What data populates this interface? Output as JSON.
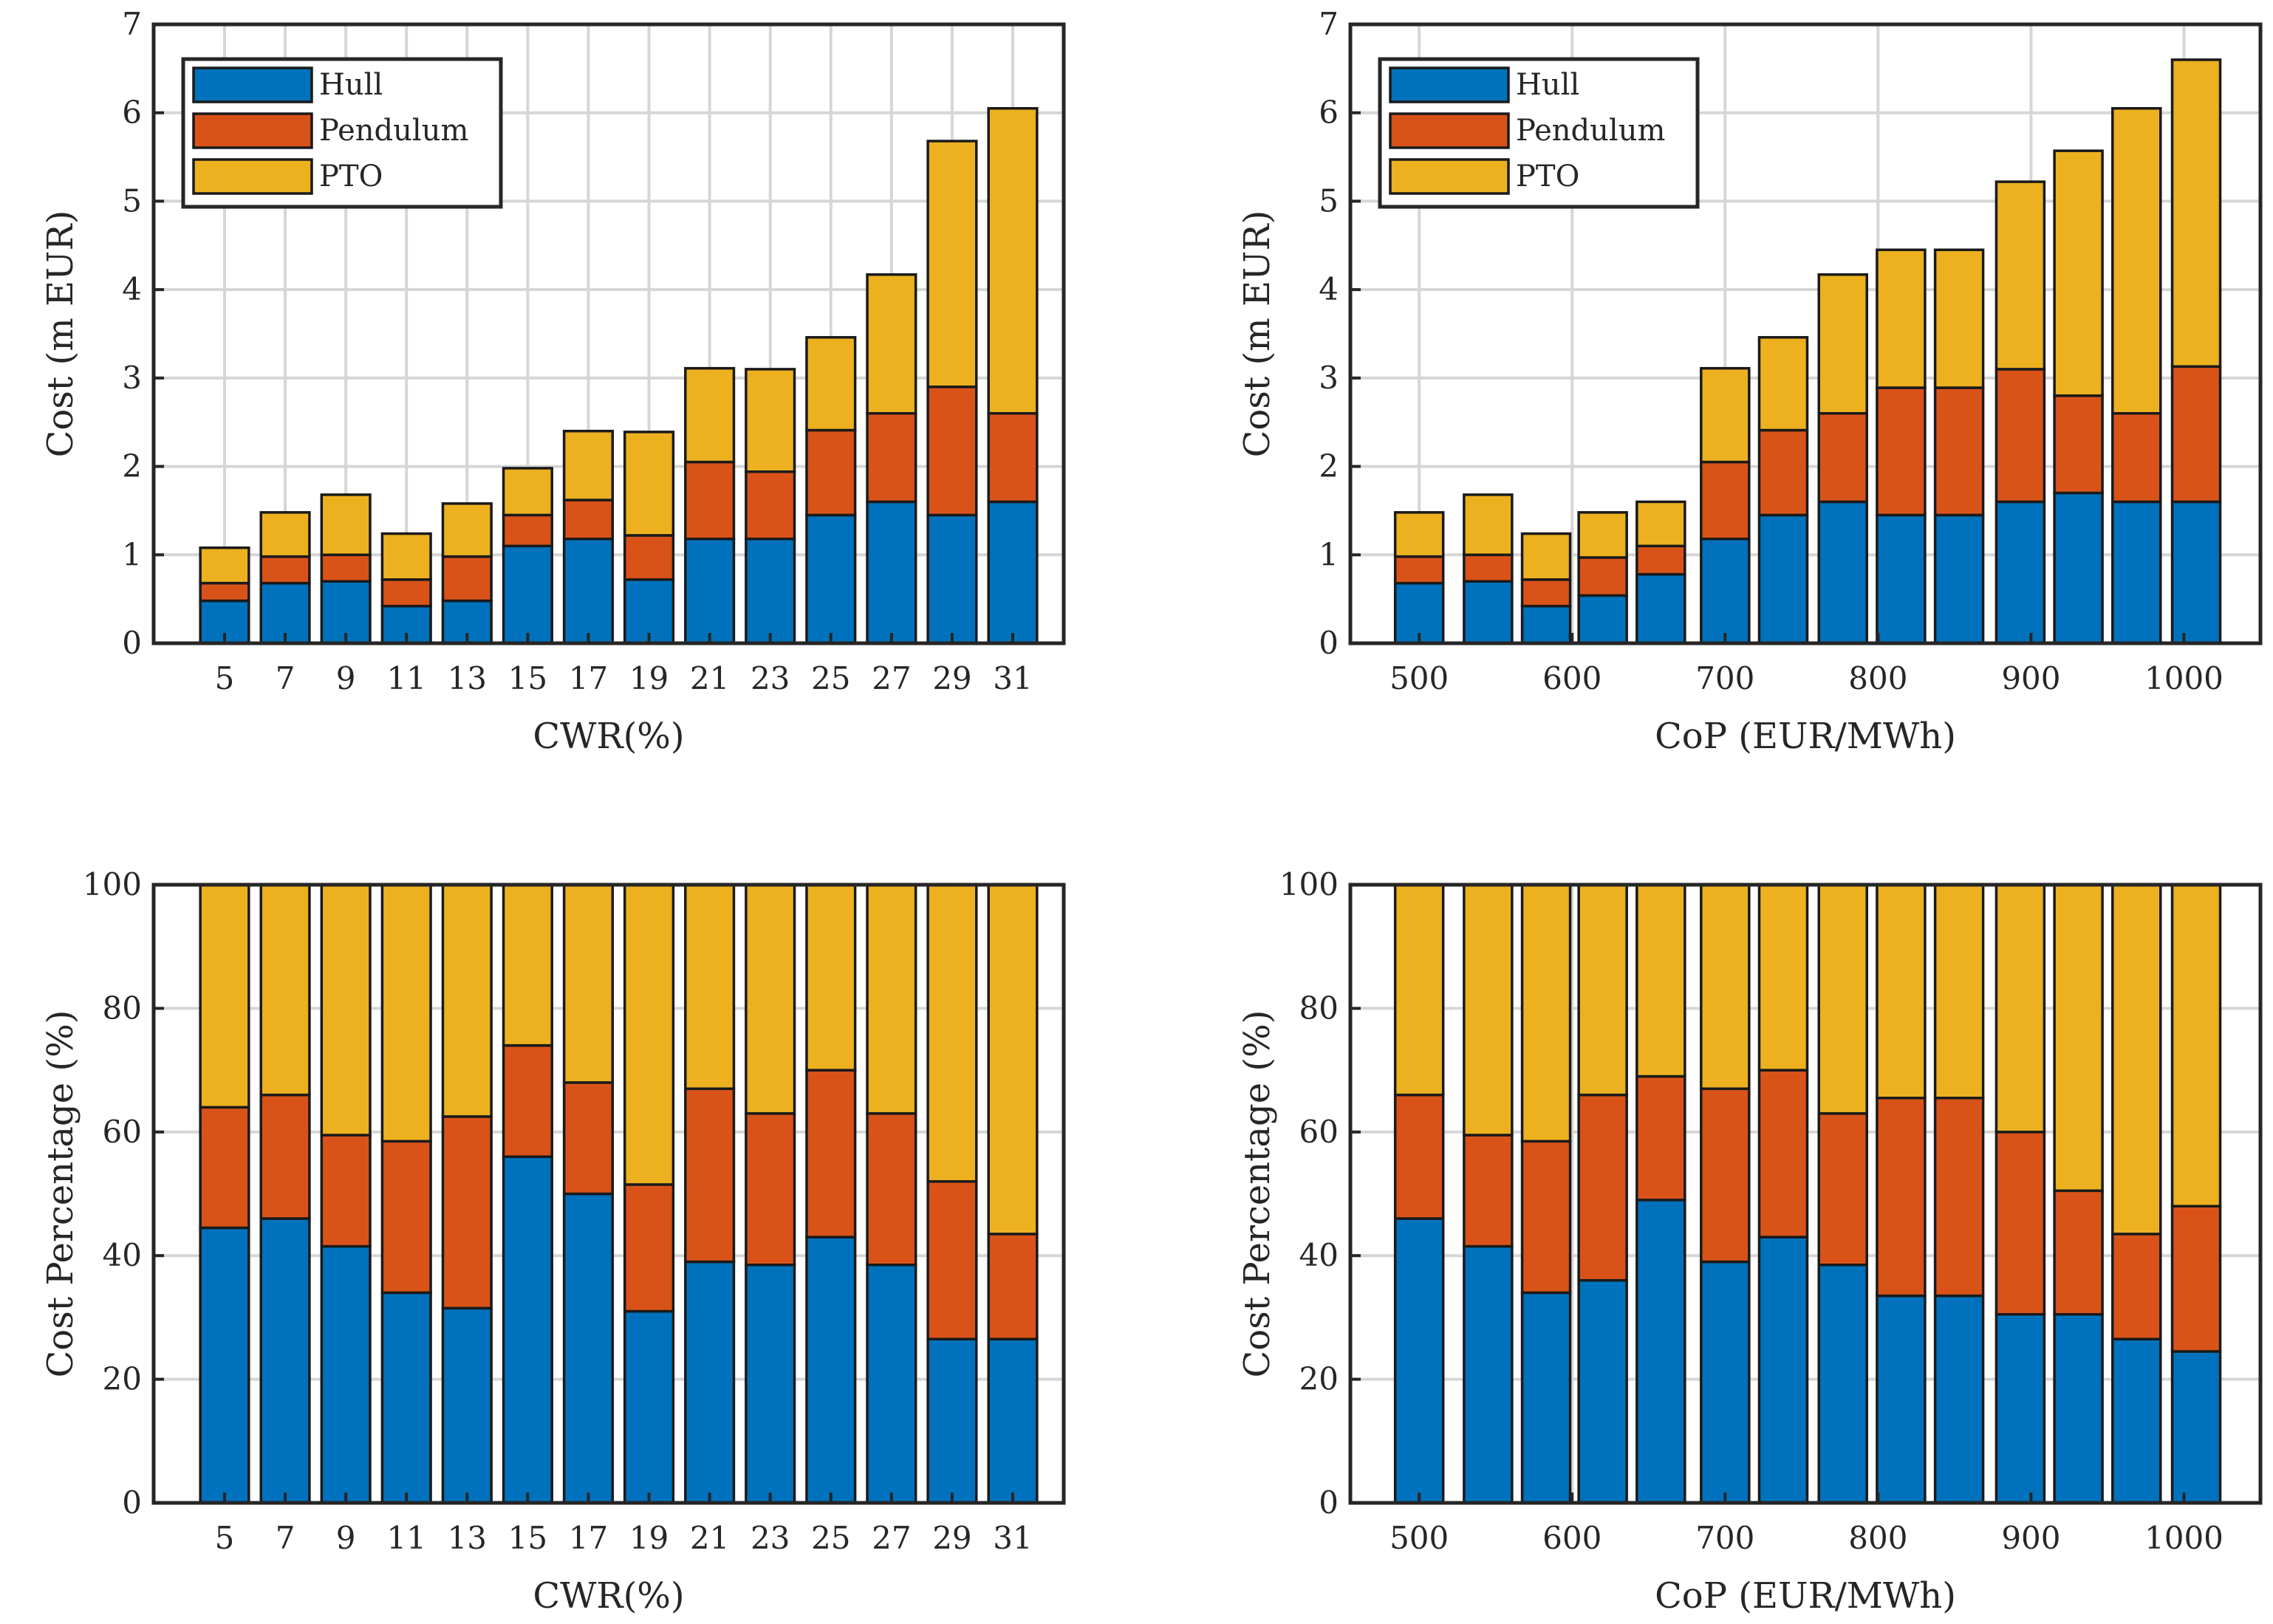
{
  "colors": {
    "Hull": "#0072BD",
    "Pendulum": "#D95319",
    "PTO": "#EDB120"
  },
  "legend": [
    "Hull",
    "Pendulum",
    "PTO"
  ],
  "chart_data": [
    {
      "id": "cwr-cost",
      "type": "bar",
      "stacked": true,
      "xlabel": "CWR(%)",
      "ylabel": "Cost (m EUR)",
      "ylim": [
        0,
        7
      ],
      "yticks": [
        "0",
        "1",
        "2",
        "3",
        "4",
        "5",
        "6",
        "7"
      ],
      "categories": [
        "5",
        "7",
        "9",
        "11",
        "13",
        "15",
        "17",
        "19",
        "21",
        "23",
        "25",
        "27",
        "29",
        "31"
      ],
      "xtick_labels": [
        "5",
        "7",
        "9",
        "11",
        "13",
        "15",
        "17",
        "19",
        "21",
        "23",
        "25",
        "27",
        "29",
        "31"
      ],
      "legend": "top-left",
      "grid": true,
      "series": [
        {
          "name": "Hull",
          "values": [
            0.48,
            0.68,
            0.7,
            0.42,
            0.48,
            1.1,
            1.18,
            0.72,
            1.18,
            1.18,
            1.45,
            1.6,
            1.45,
            1.6
          ]
        },
        {
          "name": "Pendulum",
          "values": [
            0.2,
            0.3,
            0.3,
            0.3,
            0.5,
            0.35,
            0.44,
            0.5,
            0.87,
            0.76,
            0.96,
            1.0,
            1.45,
            1.0
          ]
        },
        {
          "name": "PTO",
          "values": [
            0.4,
            0.5,
            0.68,
            0.52,
            0.6,
            0.53,
            0.78,
            1.17,
            1.06,
            1.16,
            1.05,
            1.57,
            2.78,
            3.45
          ]
        }
      ]
    },
    {
      "id": "cop-cost",
      "type": "bar",
      "stacked": true,
      "xlabel": "CoP (EUR/MWh)",
      "ylabel": "Cost (m EUR)",
      "ylim": [
        0,
        7
      ],
      "yticks": [
        "0",
        "1",
        "2",
        "3",
        "4",
        "5",
        "6",
        "7"
      ],
      "categories": [
        "500",
        "550",
        "575",
        "600",
        "650",
        "700",
        "725",
        "775",
        "800",
        "850",
        "875",
        "925",
        "950",
        "1000"
      ],
      "xtick_labels": [
        "500",
        "600",
        "700",
        "800",
        "900",
        "1000"
      ],
      "xtick_values": [
        500,
        600,
        700,
        800,
        900,
        1000
      ],
      "xlim": [
        455,
        1050
      ],
      "bar_x": [
        500,
        545,
        583,
        620,
        658,
        700,
        738,
        777,
        815,
        853,
        893,
        931,
        969,
        1008
      ],
      "legend": "top-left",
      "grid": true,
      "series": [
        {
          "name": "Hull",
          "values": [
            0.68,
            0.7,
            0.42,
            0.54,
            0.78,
            1.18,
            1.45,
            1.6,
            1.45,
            1.45,
            1.6,
            1.7,
            1.6,
            1.6
          ]
        },
        {
          "name": "Pendulum",
          "values": [
            0.3,
            0.3,
            0.3,
            0.43,
            0.32,
            0.87,
            0.96,
            1.0,
            1.44,
            1.44,
            1.5,
            1.1,
            1.0,
            1.53
          ]
        },
        {
          "name": "PTO",
          "values": [
            0.5,
            0.68,
            0.52,
            0.51,
            0.5,
            1.06,
            1.05,
            1.57,
            1.56,
            1.56,
            2.12,
            2.77,
            3.45,
            3.47
          ]
        }
      ]
    },
    {
      "id": "cwr-pct",
      "type": "bar",
      "stacked": true,
      "xlabel": "CWR(%)",
      "ylabel": "Cost Percentage (%)",
      "ylim": [
        0,
        100
      ],
      "yticks": [
        "0",
        "20",
        "40",
        "60",
        "80",
        "100"
      ],
      "categories": [
        "5",
        "7",
        "9",
        "11",
        "13",
        "15",
        "17",
        "19",
        "21",
        "23",
        "25",
        "27",
        "29",
        "31"
      ],
      "xtick_labels": [
        "5",
        "7",
        "9",
        "11",
        "13",
        "15",
        "17",
        "19",
        "21",
        "23",
        "25",
        "27",
        "29",
        "31"
      ],
      "grid": true,
      "series": [
        {
          "name": "Hull",
          "values": [
            44.5,
            46,
            41.5,
            34,
            31.5,
            56,
            50,
            31,
            39,
            38.5,
            43,
            38.5,
            26.5,
            26.5
          ]
        },
        {
          "name": "Pendulum",
          "values": [
            19.5,
            20,
            18,
            24.5,
            31,
            18,
            18,
            20.5,
            28,
            24.5,
            27,
            24.5,
            25.5,
            17
          ]
        },
        {
          "name": "PTO",
          "values": [
            36,
            34,
            40.5,
            41.5,
            37.5,
            26,
            32,
            48.5,
            33,
            37,
            30,
            37,
            48,
            56.5
          ]
        }
      ]
    },
    {
      "id": "cop-pct",
      "type": "bar",
      "stacked": true,
      "xlabel": "CoP (EUR/MWh)",
      "ylabel": "Cost Percentage (%)",
      "ylim": [
        0,
        100
      ],
      "yticks": [
        "0",
        "20",
        "40",
        "60",
        "80",
        "100"
      ],
      "categories": [
        "500",
        "550",
        "575",
        "600",
        "650",
        "700",
        "725",
        "775",
        "800",
        "850",
        "875",
        "925",
        "950",
        "1000"
      ],
      "xtick_labels": [
        "500",
        "600",
        "700",
        "800",
        "900",
        "1000"
      ],
      "xtick_values": [
        500,
        600,
        700,
        800,
        900,
        1000
      ],
      "xlim": [
        455,
        1050
      ],
      "bar_x": [
        500,
        545,
        583,
        620,
        658,
        700,
        738,
        777,
        815,
        853,
        893,
        931,
        969,
        1008
      ],
      "grid": true,
      "series": [
        {
          "name": "Hull",
          "values": [
            46,
            41.5,
            34,
            36,
            49,
            39,
            43,
            38.5,
            33.5,
            33.5,
            30.5,
            30.5,
            26.5,
            24.5
          ]
        },
        {
          "name": "Pendulum",
          "values": [
            20,
            18,
            24.5,
            30,
            20,
            28,
            27,
            24.5,
            32,
            32,
            29.5,
            20,
            17,
            23.5
          ]
        },
        {
          "name": "PTO",
          "values": [
            34,
            40.5,
            41.5,
            34,
            31,
            33,
            30,
            37,
            34.5,
            34.5,
            40,
            49.5,
            56.5,
            52
          ]
        }
      ]
    }
  ]
}
